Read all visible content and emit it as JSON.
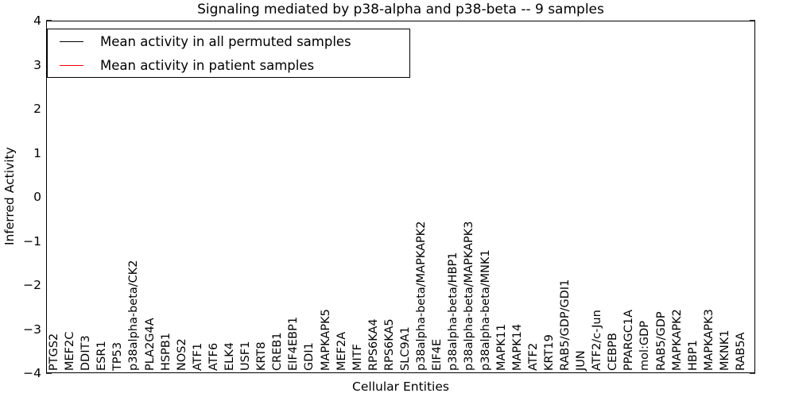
{
  "figure": {
    "title": "Signaling mediated by p38-alpha and p38-beta -- 9 samples",
    "xlabel": "Cellular Entities",
    "ylabel": "Inferred Activity",
    "ytick_labels": [
      "4",
      "3",
      "2",
      "1",
      "0",
      "−1",
      "−2",
      "−3",
      "−4"
    ]
  },
  "legend": {
    "items": [
      {
        "label": "Mean activity in all permuted samples",
        "color": "#000000"
      },
      {
        "label": "Mean activity in patient samples",
        "color": "#ff0000"
      }
    ]
  },
  "chart_data": {
    "type": "line",
    "title": "Signaling mediated by p38-alpha and p38-beta -- 9 samples",
    "xlabel": "Cellular Entities",
    "ylabel": "Inferred Activity",
    "ylim": [
      -4,
      4
    ],
    "yticks": [
      4,
      3,
      2,
      1,
      0,
      -1,
      -2,
      -3,
      -4
    ],
    "grid": false,
    "legend_position": "upper left",
    "zero_line_markers": true,
    "categories": [
      "PTGS2",
      "MEF2C",
      "DDIT3",
      "ESR1",
      "TP53",
      "p38alpha-beta/CK2",
      "PLA2G4A",
      "HSPB1",
      "NOS2",
      "ATF1",
      "ATF6",
      "ELK4",
      "USF1",
      "KRT8",
      "CREB1",
      "EIF4EBP1",
      "GDI1",
      "MAPKAPK5",
      "MEF2A",
      "MITF",
      "RPS6KA4",
      "RPS6KA5",
      "SLC9A1",
      "p38alpha-beta/MAPKAPK2",
      "EIF4E",
      "p38alpha-beta/HBP1",
      "p38alpha-beta/MAPKAPK3",
      "p38alpha-beta/MNK1",
      "MAPK11",
      "MAPK14",
      "ATF2",
      "KRT19",
      "RAB5/GDP/GDI1",
      "JUN",
      "ATF2/c-Jun",
      "CEBPB",
      "PPARGC1A",
      "mol:GDP",
      "RAB5/GDP",
      "MAPKAPK2",
      "HBP1",
      "MAPKAPK3",
      "MKNK1",
      "RAB5A"
    ],
    "series": [
      {
        "name": "Mean activity in all permuted samples",
        "color": "#000000",
        "band_color": "rgba(120,120,120,0.30)",
        "values": [
          0,
          0,
          0,
          0,
          0,
          0,
          0,
          0,
          0,
          0,
          0,
          0,
          0,
          0,
          0,
          0,
          0,
          0,
          0,
          0,
          0,
          0,
          0,
          -0.03,
          0.01,
          0,
          -0.02,
          0,
          0,
          0,
          0,
          0,
          0,
          0,
          0,
          0,
          0,
          0,
          0,
          0,
          0,
          0,
          0,
          0
        ],
        "band_hi": [
          0.18,
          0.14,
          0.13,
          0.12,
          0.13,
          0.12,
          0.14,
          0.12,
          0.12,
          0.13,
          0.12,
          0.12,
          0.13,
          0.14,
          0.12,
          0.12,
          0.13,
          0.12,
          0.14,
          0.13,
          0.12,
          0.13,
          0.13,
          0.17,
          0.13,
          0.13,
          0.15,
          0.13,
          0.12,
          0.12,
          0.13,
          0.15,
          0.16,
          0.15,
          0.16,
          0.15,
          0.14,
          0.13,
          0.13,
          0.13,
          0.13,
          0.13,
          0.13,
          0.13
        ],
        "band_lo": [
          -0.18,
          -0.14,
          -0.13,
          -0.12,
          -0.13,
          -0.12,
          -0.14,
          -0.12,
          -0.12,
          -0.13,
          -0.12,
          -0.12,
          -0.13,
          -0.14,
          -0.12,
          -0.12,
          -0.13,
          -0.12,
          -0.14,
          -0.13,
          -0.12,
          -0.13,
          -0.13,
          -0.17,
          -0.13,
          -0.13,
          -0.15,
          -0.13,
          -0.12,
          -0.12,
          -0.13,
          -0.15,
          -0.16,
          -0.15,
          -0.16,
          -0.15,
          -0.14,
          -0.13,
          -0.13,
          -0.13,
          -0.13,
          -0.13,
          -0.13,
          -0.13
        ]
      },
      {
        "name": "Mean activity in patient samples",
        "color": "#ff0000",
        "band_color": "rgba(255,30,30,0.30)",
        "values": [
          -0.42,
          -0.3,
          -0.25,
          -0.24,
          -0.2,
          -0.19,
          -0.17,
          -0.15,
          -0.14,
          -0.13,
          -0.13,
          -0.12,
          -0.12,
          -0.11,
          -0.11,
          -0.1,
          -0.1,
          -0.1,
          -0.09,
          -0.09,
          -0.09,
          -0.08,
          -0.08,
          -0.07,
          -0.07,
          -0.08,
          -0.07,
          -0.07,
          -0.07,
          -0.06,
          -0.06,
          -0.06,
          -0.06,
          -0.05,
          -0.05,
          -0.04,
          -0.03,
          0,
          0,
          0,
          0,
          0,
          0,
          0
        ],
        "band_hi": [
          0.13,
          0.08,
          0.09,
          0.08,
          0.09,
          0.12,
          0.1,
          0.1,
          0.11,
          0.1,
          0.1,
          0.1,
          0.1,
          0.1,
          0.1,
          0.1,
          0.1,
          0.1,
          0.1,
          0.1,
          0.1,
          0.1,
          0.1,
          0.12,
          0.11,
          0.1,
          0.11,
          0.1,
          0.1,
          0.1,
          0.1,
          0.1,
          0.1,
          0.09,
          0.09,
          0.08,
          0.06,
          0,
          0,
          0,
          0,
          0,
          0,
          0
        ],
        "band_lo": [
          -0.98,
          -0.55,
          -0.45,
          -0.55,
          -0.42,
          -0.48,
          -0.42,
          -0.35,
          -0.38,
          -0.33,
          -0.36,
          -0.32,
          -0.31,
          -0.27,
          -0.32,
          -0.3,
          -0.3,
          -0.31,
          -0.3,
          -0.3,
          -0.31,
          -0.3,
          -0.3,
          -0.33,
          -0.3,
          -0.31,
          -0.32,
          -0.3,
          -0.3,
          -0.29,
          -0.29,
          -0.3,
          -0.28,
          -0.27,
          -0.28,
          -0.24,
          -0.18,
          0,
          0,
          0,
          0,
          0,
          0,
          0
        ]
      }
    ]
  }
}
